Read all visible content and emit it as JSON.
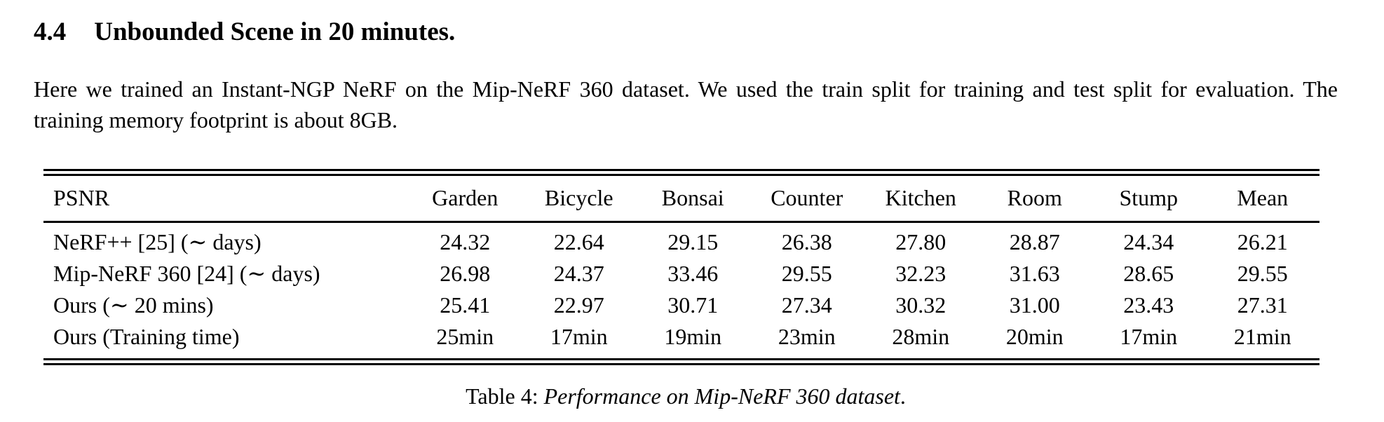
{
  "section": {
    "number": "4.4",
    "title": "Unbounded Scene in 20 minutes."
  },
  "paragraph": "Here we trained an Instant-NGP NeRF on the Mip-NeRF 360 dataset. We used the train split for training and test split for evaluation. The training memory footprint is about 8GB.",
  "table": {
    "columns": [
      "PSNR",
      "Garden",
      "Bicycle",
      "Bonsai",
      "Counter",
      "Kitchen",
      "Room",
      "Stump",
      "Mean"
    ],
    "rows": [
      [
        "NeRF++ [25] (∼ days)",
        "24.32",
        "22.64",
        "29.15",
        "26.38",
        "27.80",
        "28.87",
        "24.34",
        "26.21"
      ],
      [
        "Mip-NeRF 360 [24] (∼ days)",
        "26.98",
        "24.37",
        "33.46",
        "29.55",
        "32.23",
        "31.63",
        "28.65",
        "29.55"
      ],
      [
        "Ours (∼ 20 mins)",
        "25.41",
        "22.97",
        "30.71",
        "27.34",
        "30.32",
        "31.00",
        "23.43",
        "27.31"
      ],
      [
        "Ours (Training time)",
        "25min",
        "17min",
        "19min",
        "23min",
        "28min",
        "20min",
        "17min",
        "21min"
      ]
    ],
    "caption_prefix": "Table 4: ",
    "caption_italic": "Performance on Mip-NeRF 360 dataset",
    "caption_suffix": "."
  },
  "colors": {
    "text": "#000000",
    "background": "#ffffff"
  }
}
